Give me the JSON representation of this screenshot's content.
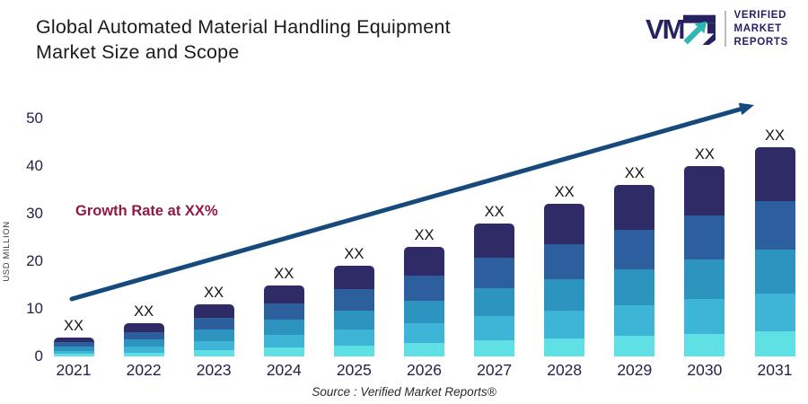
{
  "header": {
    "title_lines": [
      "Global Automated Material Handling Equipment",
      "Market Size and Scope"
    ]
  },
  "logo": {
    "wordmark": "VM",
    "mark_icon": "vmr-arrow-logo",
    "name_lines": [
      "VERIFIED",
      "MARKET",
      "REPORTS"
    ],
    "navy": "#262262",
    "teal": "#2fb5b4"
  },
  "chart_data": {
    "type": "bar",
    "subtype": "stacked-vertical",
    "title": "Global Automated Material Handling Equipment Market Size and Scope",
    "ylabel": "USD MILLION",
    "xlabel": "",
    "ylim": [
      0,
      50
    ],
    "yticks": [
      0,
      10,
      20,
      30,
      40,
      50
    ],
    "gridlines": false,
    "legend": "none",
    "categories": [
      "2021",
      "2022",
      "2023",
      "2024",
      "2025",
      "2026",
      "2027",
      "2028",
      "2029",
      "2030",
      "2031"
    ],
    "bar_top_label": "XX",
    "totals_estimated_usd_million": [
      4,
      7,
      11,
      15,
      19,
      23,
      28,
      32,
      36,
      40,
      44
    ],
    "stack_segment_colors_top_to_bottom": [
      "#2f2b66",
      "#2d5f9e",
      "#2d93bf",
      "#3eb5d6",
      "#5fe0e4"
    ],
    "stack_segment_fractions_top_to_bottom": [
      0.26,
      0.23,
      0.21,
      0.18,
      0.12
    ],
    "annotation": {
      "text": "Growth Rate at XX%",
      "color": "#8e1b42"
    },
    "trend_arrow": {
      "color": "#16497c",
      "direction": "up-right"
    },
    "source_note": "Source :  Verified Market Reports®"
  }
}
